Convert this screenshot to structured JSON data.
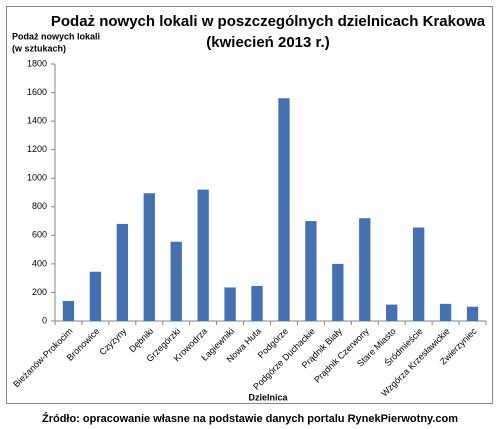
{
  "chart_data": {
    "type": "bar",
    "title": [
      "Podaż nowych lokali w poszczególnych dzielnicach Krakowa",
      "(kwiecień 2013 r.)"
    ],
    "ylabel": [
      "Podaż nowych lokali",
      "(w sztukach)"
    ],
    "xlabel": "Dzielnica",
    "source": "Źródło: opracowanie własne na podstawie danych portalu RynekPierwotny.com",
    "categories": [
      "Bieżanów-Prokocim",
      "Bronowice",
      "Czyżyny",
      "Dębniki",
      "Grzegórzki",
      "Krowodrza",
      "Łagiewniki",
      "Nowa Huta",
      "Podgórze",
      "Podgórze Duchackie",
      "Prądnik Biały",
      "Prądnik Czerwony",
      "Stare Miasto",
      "Śródmieście",
      "Wzgórza Krzesławickie",
      "Zwierzyniec"
    ],
    "values": [
      140,
      345,
      680,
      895,
      555,
      920,
      235,
      245,
      1560,
      700,
      400,
      720,
      115,
      655,
      120,
      100
    ],
    "color": "#4671b0",
    "ylim": [
      0,
      1800
    ],
    "yticks": [
      0,
      200,
      400,
      600,
      800,
      1000,
      1200,
      1400,
      1600,
      1800
    ],
    "grid": false
  }
}
